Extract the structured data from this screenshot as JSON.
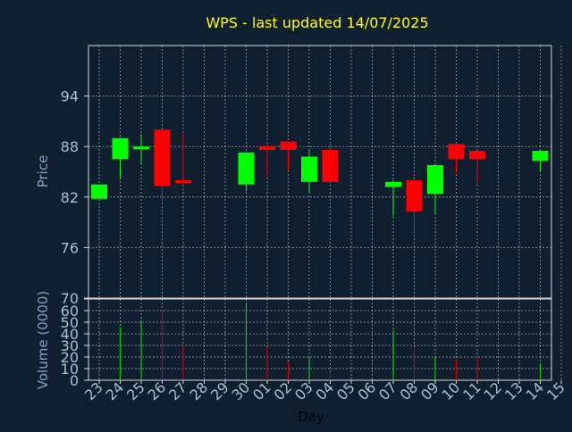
{
  "colors": {
    "background": "#0f1f2f",
    "title": "#ffff00",
    "axis_label": "#7fa3c8",
    "tick_label": "#a8bfd8",
    "axis_line": "#d8d8d8",
    "grid": "#cfcfcf",
    "up": "#00ff00",
    "down": "#ff0000",
    "volume_up": "#00cc00",
    "volume_down": "#cc0000",
    "x_label": "#000000"
  },
  "chart_data": {
    "type": "candlestick",
    "title": "WPS - last updated 14/07/2025",
    "xlabel": "Day",
    "price": {
      "ylabel": "Price",
      "ylim": [
        70,
        100
      ],
      "yticks": [
        70,
        76,
        82,
        88,
        94
      ]
    },
    "volume": {
      "ylabel": "Volume (0000)",
      "ylim": [
        0,
        70
      ],
      "yticks": [
        0,
        10,
        20,
        30,
        40,
        50,
        60,
        70
      ]
    },
    "grid": true,
    "x_ticks": [
      "23",
      "24",
      "25",
      "26",
      "27",
      "28",
      "29",
      "30",
      "01",
      "02",
      "03",
      "04",
      "05",
      "06",
      "07",
      "08",
      "09",
      "10",
      "11",
      "12",
      "13",
      "14",
      "15"
    ],
    "bars": [
      {
        "day": "23",
        "open": 81.8,
        "high": 83.5,
        "low": 81.6,
        "close": 83.5,
        "volume": 0
      },
      {
        "day": "24",
        "open": 86.5,
        "high": 89.0,
        "low": 84.2,
        "close": 89.0,
        "volume": 46
      },
      {
        "day": "25",
        "open": 87.8,
        "high": 89.5,
        "low": 86.0,
        "close": 88.0,
        "volume": 52
      },
      {
        "day": "26",
        "open": 90.0,
        "high": 90.0,
        "low": 81.3,
        "close": 83.3,
        "volume": 61
      },
      {
        "day": "27",
        "open": 84.0,
        "high": 89.5,
        "low": 83.8,
        "close": 83.8,
        "volume": 31
      },
      {
        "day": "30",
        "open": 83.5,
        "high": 87.3,
        "low": 82.7,
        "close": 87.3,
        "volume": 67
      },
      {
        "day": "01",
        "open": 88.0,
        "high": 88.2,
        "low": 84.5,
        "close": 87.6,
        "volume": 29
      },
      {
        "day": "02",
        "open": 88.6,
        "high": 88.6,
        "low": 85.2,
        "close": 87.6,
        "volume": 16
      },
      {
        "day": "03",
        "open": 83.8,
        "high": 87.5,
        "low": 82.5,
        "close": 86.8,
        "volume": 19
      },
      {
        "day": "04",
        "open": 87.6,
        "high": 88.5,
        "low": 83.8,
        "close": 83.8,
        "volume": 6
      },
      {
        "day": "07",
        "open": 83.2,
        "high": 84.0,
        "low": 79.7,
        "close": 83.8,
        "volume": 43
      },
      {
        "day": "08",
        "open": 84.0,
        "high": 84.0,
        "low": 77.8,
        "close": 80.3,
        "volume": 28
      },
      {
        "day": "09",
        "open": 82.4,
        "high": 85.8,
        "low": 80.0,
        "close": 85.8,
        "volume": 20
      },
      {
        "day": "10",
        "open": 88.3,
        "high": 88.3,
        "low": 84.8,
        "close": 86.5,
        "volume": 18
      },
      {
        "day": "11",
        "open": 87.5,
        "high": 87.5,
        "low": 83.6,
        "close": 86.5,
        "volume": 21
      },
      {
        "day": "14",
        "open": 86.3,
        "high": 87.5,
        "low": 85.0,
        "close": 87.5,
        "volume": 14
      }
    ]
  }
}
